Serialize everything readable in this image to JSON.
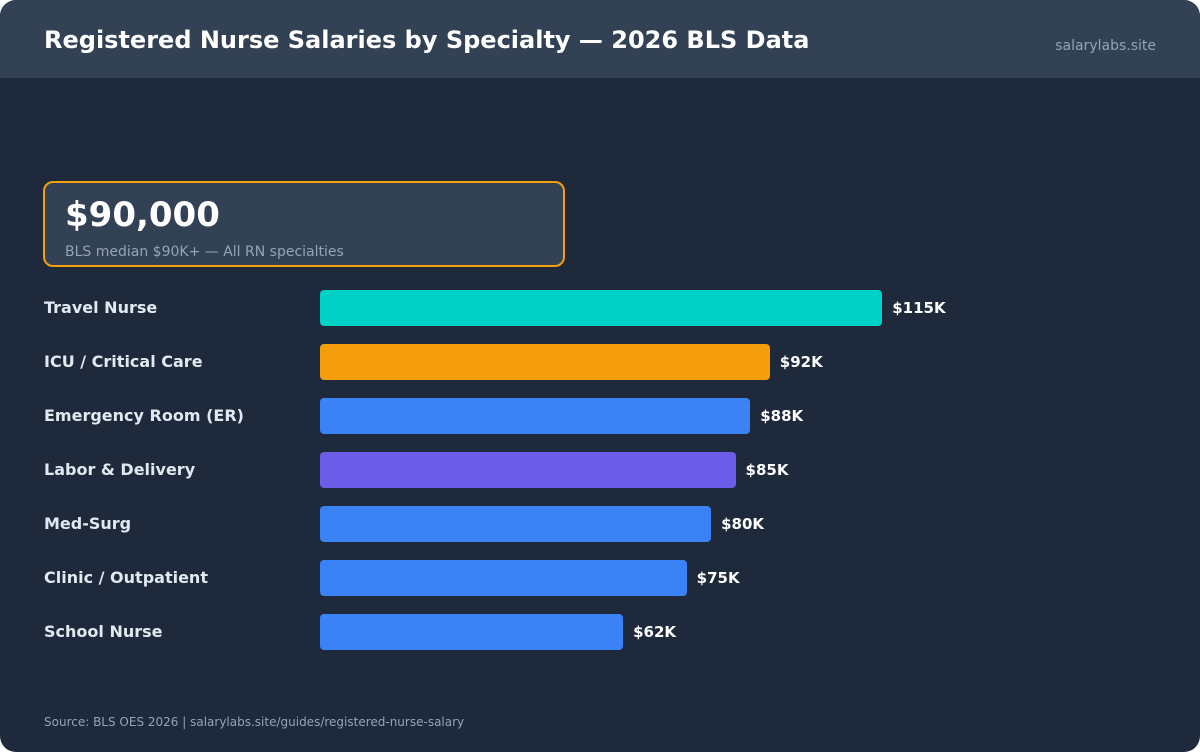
{
  "header": {
    "title": "Registered Nurse Salaries by Specialty — 2026 BLS Data",
    "site": "salarylabs.site"
  },
  "callout": {
    "value": "$90,000",
    "subtitle": "BLS median $90K+ — All RN specialties",
    "border_color": "#f59e0b"
  },
  "chart_data": {
    "type": "bar",
    "orientation": "horizontal",
    "title": "Registered Nurse Salaries by Specialty — 2026 BLS Data",
    "unit": "USD (thousands)",
    "categories": [
      "Travel Nurse",
      "ICU / Critical Care",
      "Emergency Room (ER)",
      "Labor & Delivery",
      "Med-Surg",
      "Clinic / Outpatient",
      "School Nurse"
    ],
    "values": [
      115,
      92,
      88,
      85,
      80,
      75,
      62
    ],
    "value_labels": [
      "$115K",
      "$92K",
      "$88K",
      "$85K",
      "$80K",
      "$75K",
      "$62K"
    ],
    "colors": [
      "#00d1c7",
      "#f59e0b",
      "#3b82f6",
      "#6c5ce7",
      "#3b82f6",
      "#3b82f6",
      "#3b82f6"
    ],
    "xlim": [
      0,
      180
    ],
    "grid": false,
    "legend": "none"
  },
  "footer": {
    "source": "Source: BLS OES 2026 | salarylabs.site/guides/registered-nurse-salary"
  }
}
